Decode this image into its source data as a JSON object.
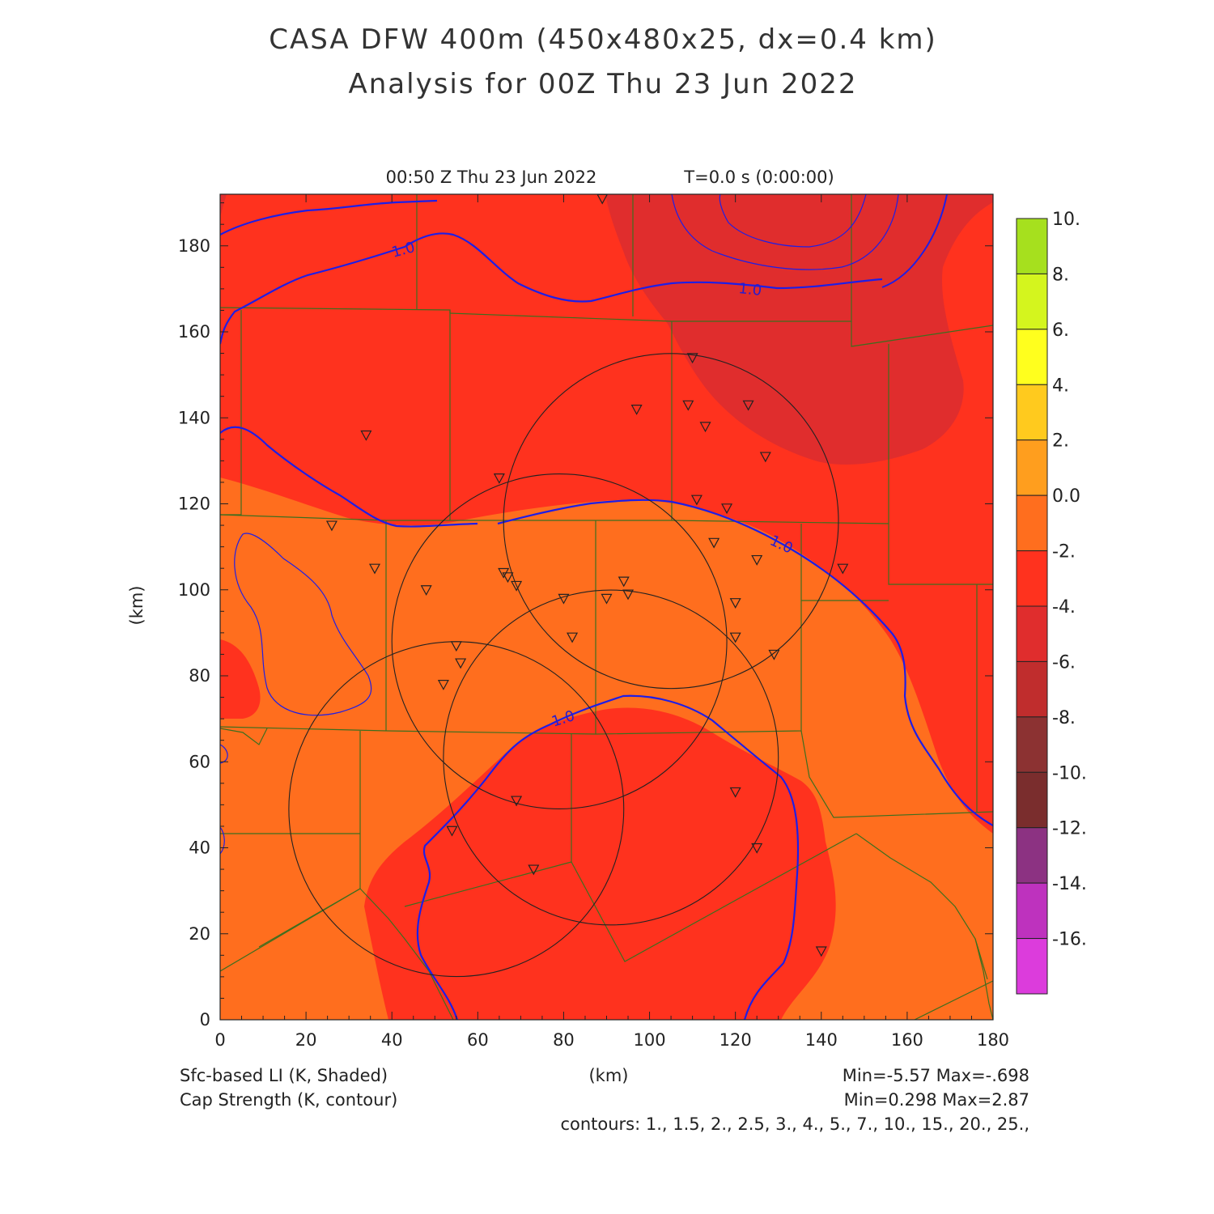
{
  "header": {
    "title_line1": "CASA DFW 400m (450x480x25, dx=0.4 km)",
    "title_line2": "Analysis for 00Z Thu 23 Jun 2022",
    "valid_time": "00:50 Z Thu 23 Jun 2022",
    "model_time": "T=0.0 s (0:00:00)"
  },
  "axes": {
    "x": {
      "min": 0,
      "max": 180,
      "ticks": [
        "0",
        "20",
        "40",
        "60",
        "80",
        "100",
        "120",
        "140",
        "160",
        "180"
      ],
      "label": "(km)"
    },
    "y": {
      "min": 0,
      "max": 192,
      "ticks": [
        "0",
        "20",
        "40",
        "60",
        "80",
        "100",
        "120",
        "140",
        "160",
        "180"
      ],
      "label": "(km)"
    }
  },
  "colorbar": {
    "labels": [
      "10.",
      "8.",
      "6.",
      "4.",
      "2.",
      "0.0",
      "-2.",
      "-4.",
      "-6.",
      "-8.",
      "-10.",
      "-12.",
      "-14.",
      "-16."
    ],
    "colors": [
      "#a6e01e",
      "#d4f51e",
      "#ffff1e",
      "#ffca1e",
      "#ff9e1e",
      "#ff6e1e",
      "#ff321e",
      "#e02d2d",
      "#c02d2d",
      "#8c3232",
      "#7a2d2d",
      "#8c3282",
      "#be32be",
      "#dc3cdc"
    ]
  },
  "field": {
    "fill_colors": {
      "minus2_to_0": "#ff6e1e",
      "minus4_to_minus2": "#ff321e",
      "minus6_to_minus4": "#e02d2d"
    },
    "contour_color": "#1e1ee6",
    "contour_label": "1.0"
  },
  "footer": {
    "shaded_label": "Sfc-based LI (K, Shaded)",
    "shaded_stats": "Min=-5.57 Max=-.698",
    "contour_label": "Cap Strength (K, contour)",
    "contour_stats": "Min=0.298 Max=2.87",
    "contours_list": "contours: 1., 1.5, 2., 2.5, 3., 4., 5., 7., 10., 15., 20., 25.,",
    "x_unit": "(km)"
  },
  "radars": [
    {
      "x": 105,
      "y": 116,
      "r": 39
    },
    {
      "x": 79,
      "y": 88,
      "r": 39
    },
    {
      "x": 91,
      "y": 61,
      "r": 39
    },
    {
      "x": 55,
      "y": 49,
      "r": 39
    }
  ],
  "stations": [
    [
      89,
      191
    ],
    [
      110,
      154
    ],
    [
      97,
      142
    ],
    [
      109,
      143
    ],
    [
      123,
      143
    ],
    [
      113,
      138
    ],
    [
      127,
      131
    ],
    [
      34,
      136
    ],
    [
      65,
      126
    ],
    [
      111,
      121
    ],
    [
      118,
      119
    ],
    [
      26,
      115
    ],
    [
      36,
      105
    ],
    [
      66,
      104
    ],
    [
      67,
      103
    ],
    [
      69,
      101
    ],
    [
      94,
      102
    ],
    [
      95,
      99
    ],
    [
      90,
      98
    ],
    [
      80,
      98
    ],
    [
      115,
      111
    ],
    [
      125,
      107
    ],
    [
      145,
      105
    ],
    [
      48,
      100
    ],
    [
      120,
      97
    ],
    [
      82,
      89
    ],
    [
      120,
      89
    ],
    [
      129,
      85
    ],
    [
      55,
      87
    ],
    [
      56,
      83
    ],
    [
      52,
      78
    ],
    [
      69,
      51
    ],
    [
      120,
      53
    ],
    [
      54,
      44
    ],
    [
      125,
      40
    ],
    [
      73,
      35
    ],
    [
      140,
      16
    ]
  ]
}
